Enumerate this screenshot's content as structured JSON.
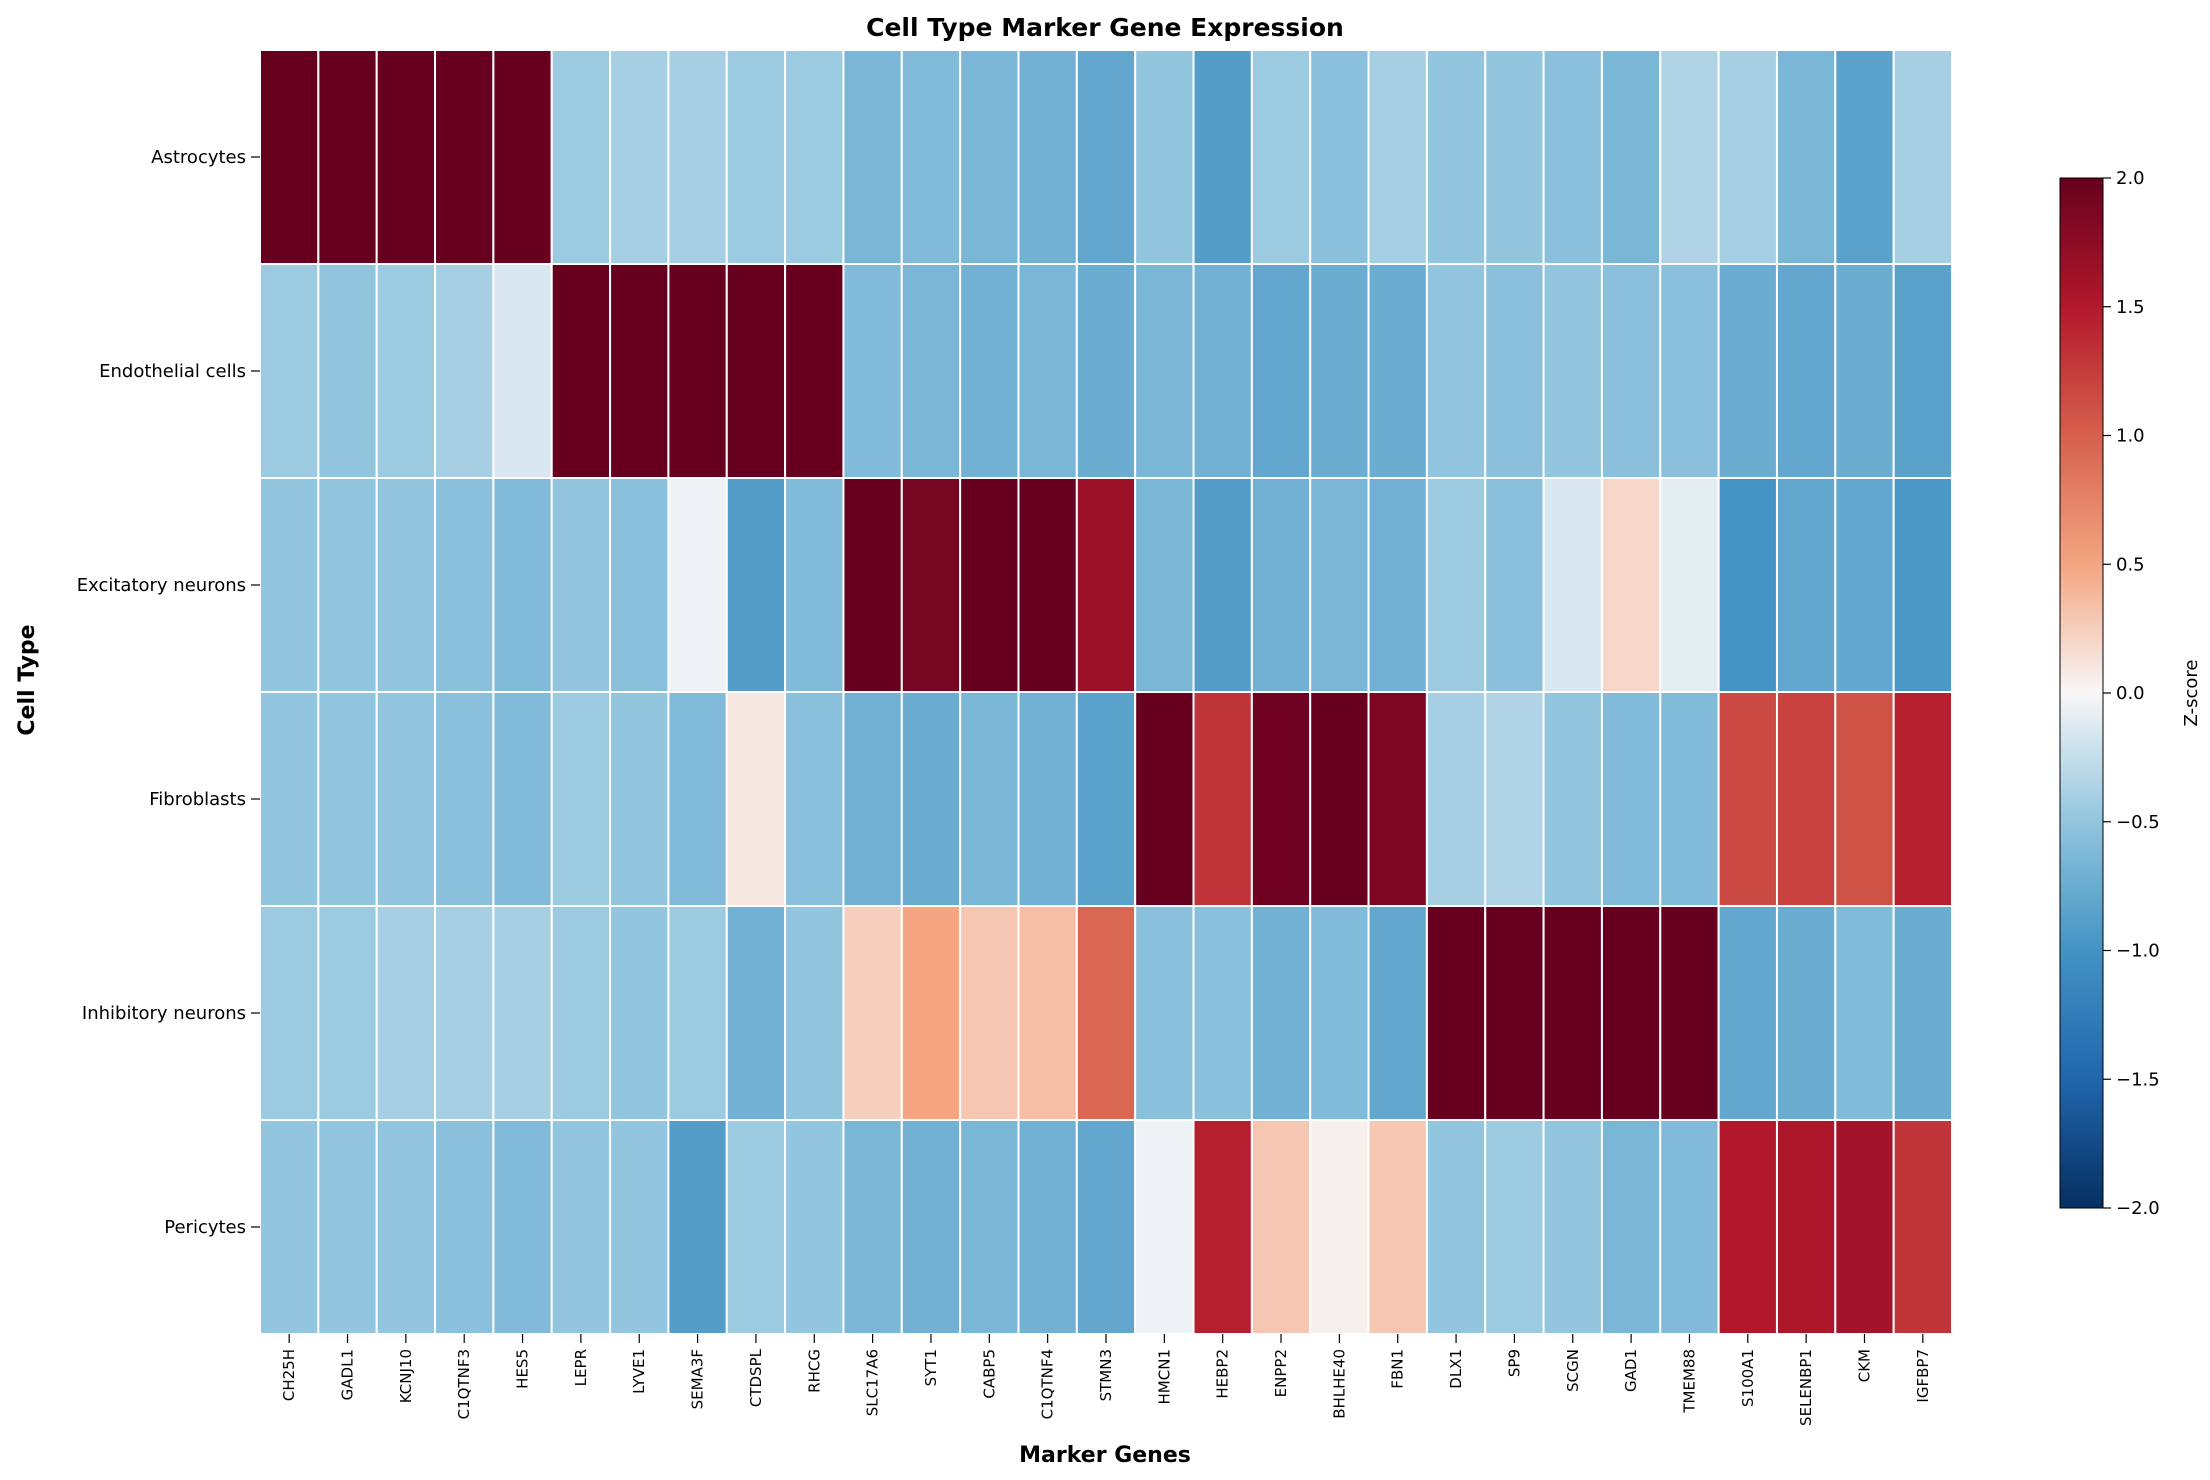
{
  "chart_data": {
    "type": "heatmap",
    "title": "Cell Type Marker Gene Expression",
    "xlabel": "Marker Genes",
    "ylabel": "Cell Type",
    "colorbar_label": "Z-score",
    "colormap": "RdBu_r",
    "vmin": -2.0,
    "vmax": 2.0,
    "colorbar_ticks": [
      "2.0",
      "1.5",
      "1.0",
      "0.5",
      "0.0",
      "−0.5",
      "−1.0",
      "−1.5",
      "−2.0"
    ],
    "grid": true,
    "rows": [
      "Astrocytes",
      "Endothelial cells",
      "Excitatory neurons",
      "Fibroblasts",
      "Inhibitory neurons",
      "Pericytes"
    ],
    "columns": [
      "CH25H",
      "GADL1",
      "KCNJ10",
      "C1QTNF3",
      "HES5",
      "LEPR",
      "LYVE1",
      "SEMA3F",
      "CTDSPL",
      "RHCG",
      "SLC17A6",
      "SYT1",
      "CABP5",
      "C1QTNF4",
      "STMN3",
      "HMCN1",
      "HEBP2",
      "ENPP2",
      "BHLHE40",
      "FBN1",
      "DLX1",
      "SP9",
      "SCGN",
      "GAD1",
      "TMEM88",
      "S100A1",
      "SELENBP1",
      "CKM",
      "IGFBP7"
    ],
    "values": [
      [
        2.2,
        2.2,
        2.2,
        2.2,
        2.2,
        -0.45,
        -0.4,
        -0.4,
        -0.45,
        -0.45,
        -0.65,
        -0.6,
        -0.65,
        -0.7,
        -0.8,
        -0.5,
        -0.9,
        -0.45,
        -0.55,
        -0.4,
        -0.5,
        -0.5,
        -0.55,
        -0.65,
        -0.35,
        -0.4,
        -0.65,
        -0.85,
        -0.4
      ],
      [
        -0.45,
        -0.5,
        -0.45,
        -0.4,
        -0.15,
        2.2,
        2.2,
        2.2,
        2.2,
        2.2,
        -0.6,
        -0.65,
        -0.7,
        -0.65,
        -0.75,
        -0.65,
        -0.7,
        -0.8,
        -0.75,
        -0.75,
        -0.5,
        -0.55,
        -0.5,
        -0.55,
        -0.55,
        -0.75,
        -0.8,
        -0.75,
        -0.85
      ],
      [
        -0.5,
        -0.5,
        -0.5,
        -0.55,
        -0.6,
        -0.5,
        -0.55,
        -0.05,
        -0.9,
        -0.6,
        2.2,
        1.9,
        2.2,
        2.0,
        1.65,
        -0.65,
        -0.9,
        -0.7,
        -0.65,
        -0.7,
        -0.45,
        -0.55,
        -0.15,
        0.2,
        -0.1,
        -1.0,
        -0.8,
        -0.8,
        -0.95
      ],
      [
        -0.5,
        -0.5,
        -0.5,
        -0.55,
        -0.6,
        -0.45,
        -0.5,
        -0.6,
        0.1,
        -0.55,
        -0.7,
        -0.75,
        -0.65,
        -0.7,
        -0.85,
        2.2,
        1.3,
        1.95,
        2.2,
        1.85,
        -0.4,
        -0.35,
        -0.5,
        -0.6,
        -0.6,
        1.15,
        1.2,
        1.1,
        1.45
      ],
      [
        -0.45,
        -0.45,
        -0.4,
        -0.4,
        -0.4,
        -0.45,
        -0.5,
        -0.45,
        -0.7,
        -0.5,
        0.25,
        0.5,
        0.3,
        0.35,
        0.95,
        -0.55,
        -0.55,
        -0.7,
        -0.6,
        -0.8,
        2.2,
        2.2,
        2.2,
        2.1,
        2.2,
        -0.8,
        -0.75,
        -0.6,
        -0.75
      ],
      [
        -0.5,
        -0.5,
        -0.5,
        -0.55,
        -0.6,
        -0.5,
        -0.5,
        -0.9,
        -0.45,
        -0.5,
        -0.65,
        -0.7,
        -0.65,
        -0.7,
        -0.8,
        -0.05,
        1.45,
        0.3,
        0.05,
        0.3,
        -0.5,
        -0.45,
        -0.5,
        -0.65,
        -0.6,
        1.5,
        1.55,
        1.6,
        1.3
      ]
    ]
  }
}
